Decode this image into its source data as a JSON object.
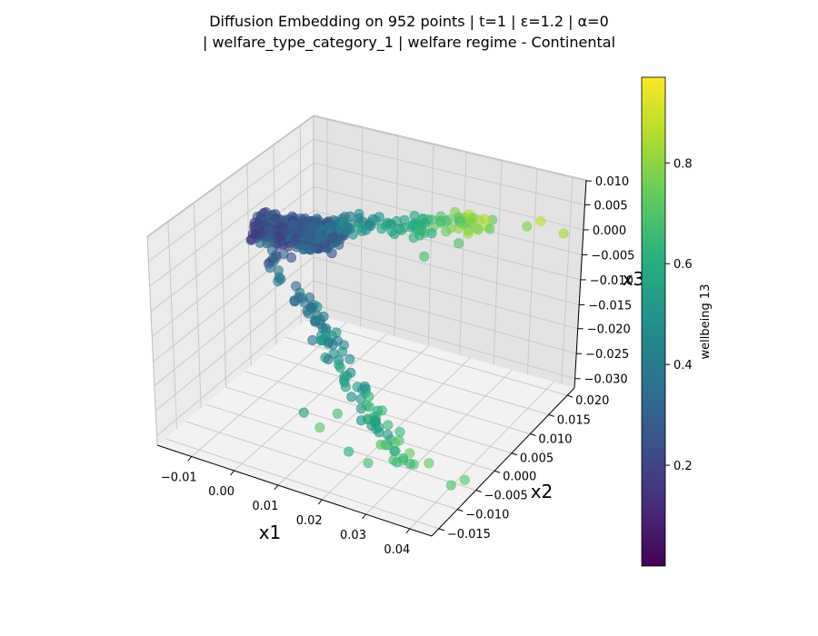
{
  "chart_data": {
    "type": "scatter",
    "projection": "3d",
    "title_line1": "Diffusion Embedding on 952 points | t=1 | ε=1.2 | α=0",
    "title_line2": "| welfare_type_category_1 | welfare regime - Continental",
    "xlabel": "x1",
    "ylabel": "x2",
    "zlabel": "x3",
    "x_ticks": [
      "−0.01",
      "0.00",
      "0.01",
      "0.02",
      "0.03",
      "0.04"
    ],
    "y_ticks": [
      "−0.015",
      "−0.010",
      "−0.005",
      "0.000",
      "0.005",
      "0.010",
      "0.015",
      "0.020"
    ],
    "z_ticks": [
      "−0.030",
      "−0.025",
      "−0.020",
      "−0.015",
      "−0.010",
      "−0.005",
      "0.000",
      "0.005",
      "0.010"
    ],
    "grid": true,
    "colormap": "viridis",
    "colorbar": {
      "label": "wellbeing 13",
      "ticks": [
        "0.2",
        "0.4",
        "0.6",
        "0.8"
      ],
      "range": [
        0.0,
        0.97
      ]
    },
    "points_shown_approx": [
      {
        "x": 0.036,
        "y": 0.019,
        "z": 0.004,
        "c": 0.9
      },
      {
        "x": 0.04,
        "y": 0.02,
        "z": 0.002,
        "c": 0.86
      },
      {
        "x": 0.034,
        "y": 0.018,
        "z": 0.003,
        "c": 0.8
      },
      {
        "x": 0.03,
        "y": 0.013,
        "z": 0.005,
        "c": 0.76
      },
      {
        "x": 0.026,
        "y": 0.01,
        "z": 0.003,
        "c": 0.72
      },
      {
        "x": 0.022,
        "y": 0.006,
        "z": 0.002,
        "c": 0.7
      },
      {
        "x": 0.04,
        "y": -0.005,
        "z": -0.03,
        "c": 0.74
      },
      {
        "x": 0.038,
        "y": -0.006,
        "z": -0.031,
        "c": 0.72
      },
      {
        "x": 0.032,
        "y": -0.004,
        "z": -0.03,
        "c": 0.76
      },
      {
        "x": 0.024,
        "y": -0.01,
        "z": -0.028,
        "c": 0.7
      },
      {
        "x": 0.02,
        "y": -0.01,
        "z": -0.027,
        "c": 0.64
      },
      {
        "x": 0.016,
        "y": -0.008,
        "z": -0.022,
        "c": 0.7
      },
      {
        "x": 0.012,
        "y": -0.012,
        "z": -0.02,
        "c": 0.56
      },
      {
        "x": 0.014,
        "y": -0.01,
        "z": -0.024,
        "c": 0.74
      }
    ]
  }
}
